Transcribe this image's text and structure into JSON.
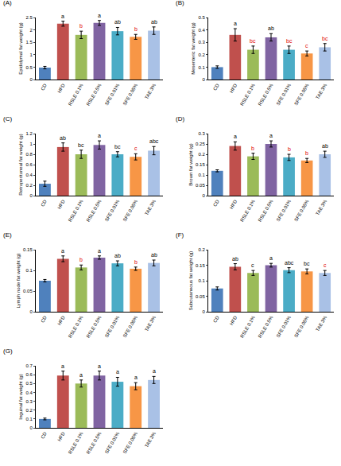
{
  "chart_data": [
    {
      "type": "bar",
      "title": "(A)",
      "y_label": "Epididymal fat weight (g)",
      "categories": [
        "CD",
        "HFD",
        "RSLE 0.1%",
        "RSLE 0.5%",
        "SFE 0.01%",
        "SFE 0.05%",
        "TAE 3%"
      ],
      "values": [
        0.48,
        2.25,
        1.8,
        2.28,
        1.95,
        1.72,
        1.97
      ],
      "errors": [
        0.05,
        0.1,
        0.15,
        0.1,
        0.15,
        0.1,
        0.15
      ],
      "letters": [
        null,
        "a",
        "b",
        "a",
        "ab",
        "b",
        "ab"
      ],
      "letter_colors": [
        "#000000",
        "#000000",
        "#e00000",
        "#000000",
        "#000000",
        "#e00000",
        "#000000"
      ],
      "colors": [
        "#4f81bd",
        "#c0504d",
        "#9bbb59",
        "#8064a2",
        "#4bacc6",
        "#f79646",
        "#a9c1e6"
      ],
      "ylim": [
        0,
        2.5
      ],
      "yticks": [
        0,
        0.5,
        1,
        1.5,
        2,
        2.5
      ]
    },
    {
      "type": "bar",
      "title": "(B)",
      "y_label": "Mesenteric fat weight (g)",
      "categories": [
        "CD",
        "HFD",
        "RSLE 0.1%",
        "RSLE 0.5%",
        "SFE 0.01%",
        "SFE 0.05%",
        "TAE 3%"
      ],
      "values": [
        0.1,
        0.36,
        0.24,
        0.34,
        0.24,
        0.21,
        0.26
      ],
      "errors": [
        0.01,
        0.05,
        0.03,
        0.03,
        0.03,
        0.02,
        0.03
      ],
      "letters": [
        null,
        "a",
        "bc",
        "ab",
        "bc",
        "c",
        "bc"
      ],
      "letter_colors": [
        "#000000",
        "#000000",
        "#e00000",
        "#000000",
        "#e00000",
        "#e00000",
        "#e00000"
      ],
      "colors": [
        "#4f81bd",
        "#c0504d",
        "#9bbb59",
        "#8064a2",
        "#4bacc6",
        "#f79646",
        "#a9c1e6"
      ],
      "ylim": [
        0,
        0.5
      ],
      "yticks": [
        0,
        0.1,
        0.2,
        0.3,
        0.4,
        0.5
      ]
    },
    {
      "type": "bar",
      "title": "(C)",
      "y_label": "Retroperitoneal fat weight (g)",
      "categories": [
        "CD",
        "HFD",
        "RSLE 0.1%",
        "RSLE 0.5%",
        "SFE 0.01%",
        "SFE 0.05%",
        "TAE 3%"
      ],
      "values": [
        0.23,
        0.94,
        0.8,
        0.98,
        0.8,
        0.75,
        0.87
      ],
      "errors": [
        0.05,
        0.08,
        0.08,
        0.08,
        0.05,
        0.06,
        0.08
      ],
      "letters": [
        null,
        "ab",
        "bc",
        "a",
        "bc",
        "c",
        "abc"
      ],
      "letter_colors": [
        "#000000",
        "#000000",
        "#000000",
        "#000000",
        "#000000",
        "#e00000",
        "#000000"
      ],
      "colors": [
        "#4f81bd",
        "#c0504d",
        "#9bbb59",
        "#8064a2",
        "#4bacc6",
        "#f79646",
        "#a9c1e6"
      ],
      "ylim": [
        0,
        1.2
      ],
      "yticks": [
        0,
        0.2,
        0.4,
        0.6,
        0.8,
        1,
        1.2
      ]
    },
    {
      "type": "bar",
      "title": "(D)",
      "y_label": "Brown fat weight (g)",
      "categories": [
        "CD",
        "HFD",
        "RSLE 0.1%",
        "RSLE 0.5%",
        "SFE 0.01%",
        "SFE 0.05%",
        "TAE 3%"
      ],
      "values": [
        0.12,
        0.24,
        0.19,
        0.25,
        0.185,
        0.17,
        0.2
      ],
      "errors": [
        0.005,
        0.02,
        0.015,
        0.015,
        0.015,
        0.01,
        0.015
      ],
      "letters": [
        null,
        "a",
        "b",
        "a",
        "b",
        "b",
        "ab"
      ],
      "letter_colors": [
        "#000000",
        "#000000",
        "#e00000",
        "#000000",
        "#e00000",
        "#e00000",
        "#000000"
      ],
      "colors": [
        "#4f81bd",
        "#c0504d",
        "#9bbb59",
        "#8064a2",
        "#4bacc6",
        "#f79646",
        "#a9c1e6"
      ],
      "ylim": [
        0,
        0.3
      ],
      "yticks": [
        0,
        0.05,
        0.1,
        0.15,
        0.2,
        0.25,
        0.3
      ]
    },
    {
      "type": "bar",
      "title": "(E)",
      "y_label": "Lymph node fat weight (g)",
      "categories": [
        "CD",
        "HFD",
        "RSLE 0.1%",
        "RSLE 0.5%",
        "SFE 0.01%",
        "SFE 0.05%",
        "TAE 3%"
      ],
      "values": [
        0.075,
        0.128,
        0.107,
        0.131,
        0.117,
        0.104,
        0.118
      ],
      "errors": [
        0.003,
        0.007,
        0.006,
        0.004,
        0.006,
        0.004,
        0.007
      ],
      "letters": [
        null,
        "a",
        "b",
        "a",
        "ab",
        "b",
        "ab"
      ],
      "letter_colors": [
        "#000000",
        "#000000",
        "#e00000",
        "#000000",
        "#000000",
        "#e00000",
        "#000000"
      ],
      "colors": [
        "#4f81bd",
        "#c0504d",
        "#9bbb59",
        "#8064a2",
        "#4bacc6",
        "#f79646",
        "#a9c1e6"
      ],
      "ylim": [
        0,
        0.15
      ],
      "yticks": [
        0,
        0.05,
        0.1,
        0.15
      ]
    },
    {
      "type": "bar",
      "title": "(F)",
      "y_label": "Subcutaneous fat weight (g)",
      "categories": [
        "CD",
        "HFD",
        "RSLE 0.1%",
        "RSLE 0.5%",
        "SFE 0.01%",
        "SFE 0.05%",
        "TAE 3%"
      ],
      "values": [
        0.075,
        0.145,
        0.125,
        0.15,
        0.134,
        0.13,
        0.125
      ],
      "errors": [
        0.005,
        0.01,
        0.008,
        0.006,
        0.008,
        0.008,
        0.008
      ],
      "letters": [
        null,
        "ab",
        "c",
        "a",
        "abc",
        "bc",
        "c"
      ],
      "letter_colors": [
        "#000000",
        "#000000",
        "#000000",
        "#000000",
        "#000000",
        "#000000",
        "#e00000"
      ],
      "colors": [
        "#4f81bd",
        "#c0504d",
        "#9bbb59",
        "#8064a2",
        "#4bacc6",
        "#f79646",
        "#a9c1e6"
      ],
      "ylim": [
        0,
        0.2
      ],
      "yticks": [
        0,
        0.05,
        0.1,
        0.15,
        0.2
      ]
    },
    {
      "type": "bar",
      "title": "(G)",
      "y_label": "Inguinal fat weight (g)",
      "categories": [
        "CD",
        "HFD",
        "RSLE 0.1%",
        "RSLE 0.5%",
        "SFE 0.01%",
        "SFE 0.05%",
        "TAE 3%"
      ],
      "values": [
        0.1,
        0.59,
        0.5,
        0.59,
        0.52,
        0.47,
        0.54
      ],
      "errors": [
        0.01,
        0.05,
        0.04,
        0.05,
        0.05,
        0.04,
        0.04
      ],
      "letters": [
        null,
        "a",
        "a",
        "a",
        "a",
        "a",
        "a"
      ],
      "letter_colors": [
        "#000000",
        "#000000",
        "#000000",
        "#000000",
        "#000000",
        "#000000",
        "#000000"
      ],
      "colors": [
        "#4f81bd",
        "#c0504d",
        "#9bbb59",
        "#8064a2",
        "#4bacc6",
        "#f79646",
        "#a9c1e6"
      ],
      "ylim": [
        0,
        0.7
      ],
      "yticks": [
        0,
        0.1,
        0.2,
        0.3,
        0.4,
        0.5,
        0.6,
        0.7
      ]
    }
  ]
}
